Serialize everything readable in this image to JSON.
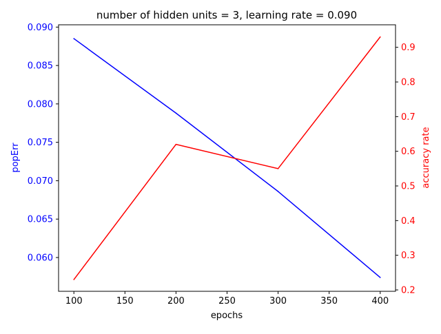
{
  "chart_data": {
    "type": "line",
    "title": "number of hidden units = 3, learning rate = 0.090",
    "xlabel": "epochs",
    "x": [
      100,
      200,
      300,
      400
    ],
    "xlim": [
      85,
      415
    ],
    "xticks": [
      100,
      150,
      200,
      250,
      300,
      350,
      400
    ],
    "grid": false,
    "left_axis": {
      "label": "popErr",
      "color": "#0000ff",
      "ylim": [
        0.0556,
        0.0903
      ],
      "ticks": [
        "0.060",
        "0.065",
        "0.070",
        "0.075",
        "0.080",
        "0.085",
        "0.090"
      ],
      "series": [
        {
          "values": [
            0.0885,
            0.0788,
            0.0686,
            0.0574
          ],
          "color": "#0000ff"
        }
      ]
    },
    "right_axis": {
      "label": "accuracy rate",
      "color": "#ff0000",
      "ylim": [
        0.196,
        0.965
      ],
      "ticks": [
        "0.2",
        "0.3",
        "0.4",
        "0.5",
        "0.6",
        "0.7",
        "0.8",
        "0.9"
      ],
      "series": [
        {
          "values": [
            0.23,
            0.62,
            0.55,
            0.93
          ],
          "color": "#ff0000"
        }
      ]
    }
  }
}
